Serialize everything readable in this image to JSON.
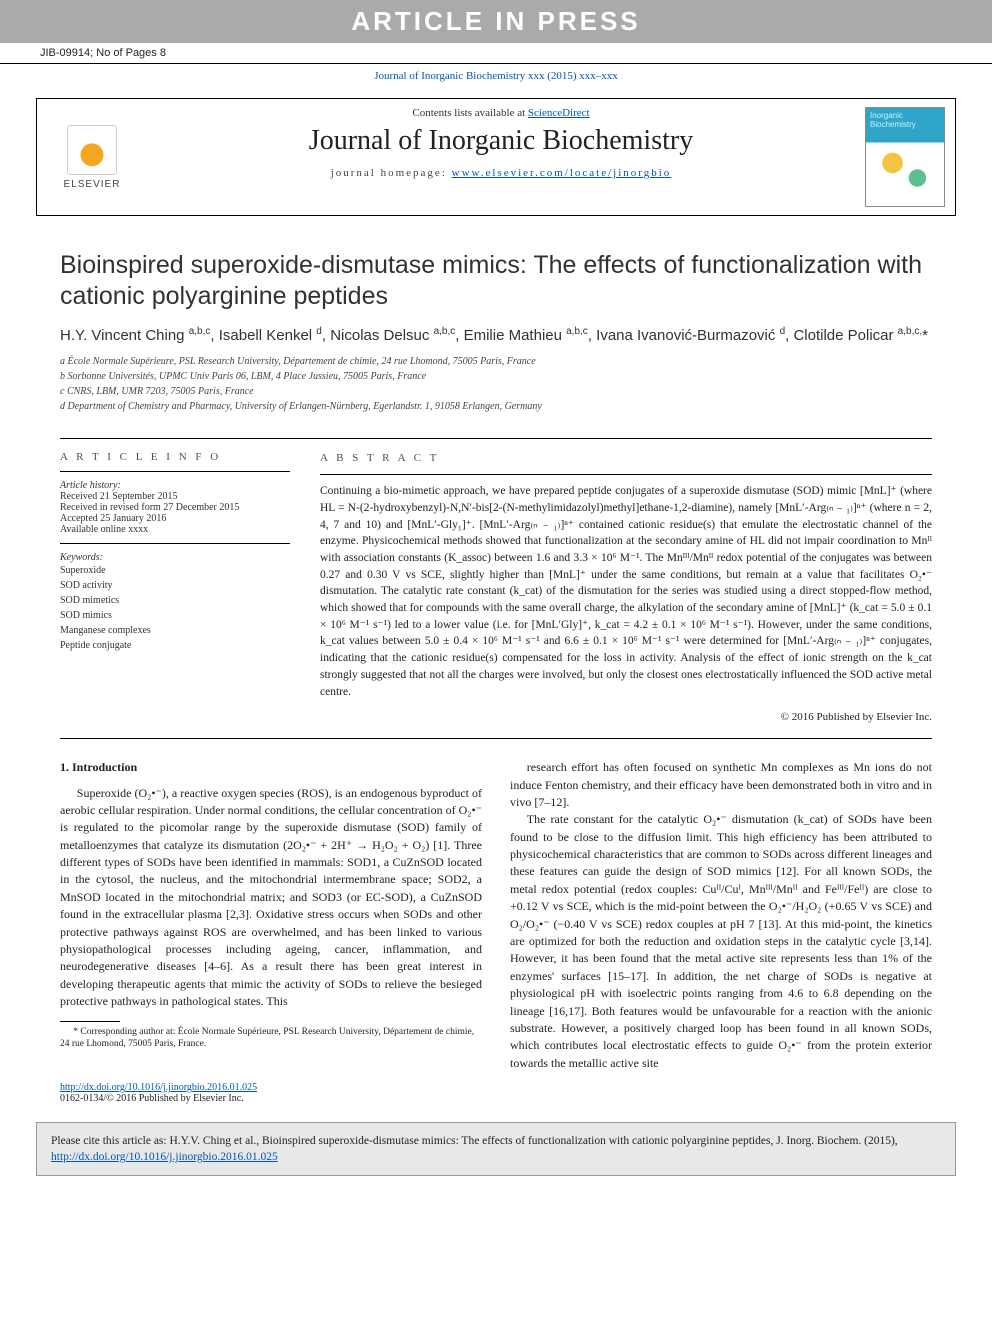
{
  "banner": "ARTICLE IN PRESS",
  "jib": {
    "left": "JIB-09914; No of Pages 8",
    "right": ""
  },
  "journal_link_line": "Journal of Inorganic Biochemistry xxx (2015) xxx–xxx",
  "header": {
    "contents_prefix": "Contents lists available at ",
    "contents_link": "ScienceDirect",
    "journal_title": "Journal of Inorganic Biochemistry",
    "homepage_prefix": "journal homepage: ",
    "homepage_link": "www.elsevier.com/locate/jinorgbio",
    "publisher_name": "ELSEVIER",
    "cover_label": "Inorganic Biochemistry"
  },
  "article": {
    "title": "Bioinspired superoxide-dismutase mimics: The effects of functionalization with cationic polyarginine peptides",
    "authors_html": "H.Y. Vincent Ching <sup>a,b,c</sup>, Isabell Kenkel <sup>d</sup>, Nicolas Delsuc <sup>a,b,c</sup>, Emilie Mathieu <sup>a,b,c</sup>, Ivana Ivanović-Burmazović <sup>d</sup>, Clotilde Policar <sup>a,b,c,</sup>*",
    "affiliations": [
      "a  École Normale Supérieure, PSL Research University, Département de chimie, 24 rue Lhomond, 75005 Paris, France",
      "b  Sorbonne Universités, UPMC Univ Paris 06, LBM, 4 Place Jussieu, 75005 Paris, France",
      "c  CNRS, LBM, UMR 7203, 75005 Paris, France",
      "d  Department of Chemistry and Pharmacy, University of Erlangen-Nürnberg, Egerlandstr. 1, 91058 Erlangen, Germany"
    ]
  },
  "info": {
    "head": "A R T I C L E   I N F O",
    "history_label": "Article history:",
    "history": [
      "Received 21 September 2015",
      "Received in revised form 27 December 2015",
      "Accepted 25 January 2016",
      "Available online xxxx"
    ],
    "keywords_label": "Keywords:",
    "keywords": [
      "Superoxide",
      "SOD activity",
      "SOD mimetics",
      "SOD mimics",
      "Manganese complexes",
      "Peptide conjugate"
    ]
  },
  "abstract": {
    "head": "A B S T R A C T",
    "text": "Continuing a bio-mimetic approach, we have prepared peptide conjugates of a superoxide dismutase (SOD) mimic [MnL]⁺ (where HL = N-(2-hydroxybenzyl)-N,N′-bis[2-(N-methylimidazolyl)methyl]ethane-1,2-diamine), namely [MnL′-Arg₍ₙ ₋ ₁₎]ⁿ⁺ (where n = 2, 4, 7 and 10) and [MnL′-Gly₁]⁺. [MnL′-Arg₍ₙ ₋ ₁₎]ⁿ⁺ contained cationic residue(s) that emulate the electrostatic channel of the enzyme. Physicochemical methods showed that functionalization at the secondary amine of HL did not impair coordination to Mnᴵᴵ with association constants (K_assoc) between 1.6 and 3.3 × 10⁶ M⁻¹. The Mnᴵᴵᴵ/Mnᴵᴵ redox potential of the conjugates was between 0.27 and 0.30 V vs SCE, slightly higher than [MnL]⁺ under the same conditions, but remain at a value that facilitates O₂•⁻ dismutation. The catalytic rate constant (k_cat) of the dismutation for the series was studied using a direct stopped-flow method, which showed that for compounds with the same overall charge, the alkylation of the secondary amine of [MnL]⁺ (k_cat = 5.0 ± 0.1 × 10⁶ M⁻¹ s⁻¹) led to a lower value (i.e. for [MnL′Gly]⁺, k_cat = 4.2 ± 0.1 × 10⁶ M⁻¹ s⁻¹). However, under the same conditions, k_cat values between 5.0 ± 0.4 × 10⁶ M⁻¹ s⁻¹ and 6.6 ± 0.1 × 10⁶ M⁻¹ s⁻¹ were determined for [MnL′-Arg₍ₙ ₋ ₁₎]ⁿ⁺ conjugates, indicating that the cationic residue(s) compensated for the loss in activity. Analysis of the effect of ionic strength on the k_cat strongly suggested that not all the charges were involved, but only the closest ones electrostatically influenced the SOD active metal centre.",
    "copyright": "© 2016 Published by Elsevier Inc."
  },
  "intro": {
    "head": "1. Introduction",
    "p1": "Superoxide (O₂•⁻), a reactive oxygen species (ROS), is an endogenous byproduct of aerobic cellular respiration. Under normal conditions, the cellular concentration of O₂•⁻ is regulated to the picomolar range by the superoxide dismutase (SOD) family of metalloenzymes that catalyze its dismutation (2O₂•⁻ + 2H⁺ → H₂O₂ + O₂) [1]. Three different types of SODs have been identified in mammals: SOD1, a CuZnSOD located in the cytosol, the nucleus, and the mitochondrial intermembrane space; SOD2, a MnSOD located in the mitochondrial matrix; and SOD3 (or EC-SOD), a CuZnSOD found in the extracellular plasma [2,3]. Oxidative stress occurs when SODs and other protective pathways against ROS are overwhelmed, and has been linked to various physiopathological processes including ageing, cancer, inflammation, and neurodegenerative diseases [4–6]. As a result there has been great interest in developing therapeutic agents that mimic the activity of SODs to relieve the besieged protective pathways in pathological states. This",
    "p1b": "research effort has often focused on synthetic Mn complexes as Mn ions do not induce Fenton chemistry, and their efficacy have been demonstrated both in vitro and in vivo [7–12].",
    "p2": "The rate constant for the catalytic O₂•⁻ dismutation (k_cat) of SODs have been found to be close to the diffusion limit. This high efficiency has been attributed to physicochemical characteristics that are common to SODs across different lineages and these features can guide the design of SOD mimics [12]. For all known SODs, the metal redox potential (redox couples: Cuᴵᴵ/Cuᴵ, Mnᴵᴵᴵ/Mnᴵᴵ and Feᴵᴵᴵ/Feᴵᴵ) are close to +0.12 V vs SCE, which is the mid-point between the O₂•⁻/H₂O₂ (+0.65 V vs SCE) and O₂/O₂•⁻ (−0.40 V vs SCE) redox couples at pH 7 [13]. At this mid-point, the kinetics are optimized for both the reduction and oxidation steps in the catalytic cycle [3,14]. However, it has been found that the metal active site represents less than 1% of the enzymes' surfaces [15–17]. In addition, the net charge of SODs is negative at physiological pH with isoelectric points ranging from 4.6 to 6.8 depending on the lineage [16,17]. Both features would be unfavourable for a reaction with the anionic substrate. However, a positively charged loop has been found in all known SODs, which contributes local electrostatic effects to guide O₂•⁻ from the protein exterior towards the metallic active site"
  },
  "footnote": {
    "text": "* Corresponding author at: École Normale Supérieure, PSL Research University, Département de chimie, 24 rue Lhomond, 75005 Paris, France."
  },
  "doi": {
    "link": "http://dx.doi.org/10.1016/j.jinorgbio.2016.01.025",
    "issn": "0162-0134/© 2016 Published by Elsevier Inc."
  },
  "citebox": {
    "prefix": "Please cite this article as: H.Y.V. Ching et al., Bioinspired superoxide-dismutase mimics: The effects of functionalization with cationic polyarginine peptides, J. Inorg. Biochem. (2015), ",
    "link": "http://dx.doi.org/10.1016/j.jinorgbio.2016.01.025"
  }
}
